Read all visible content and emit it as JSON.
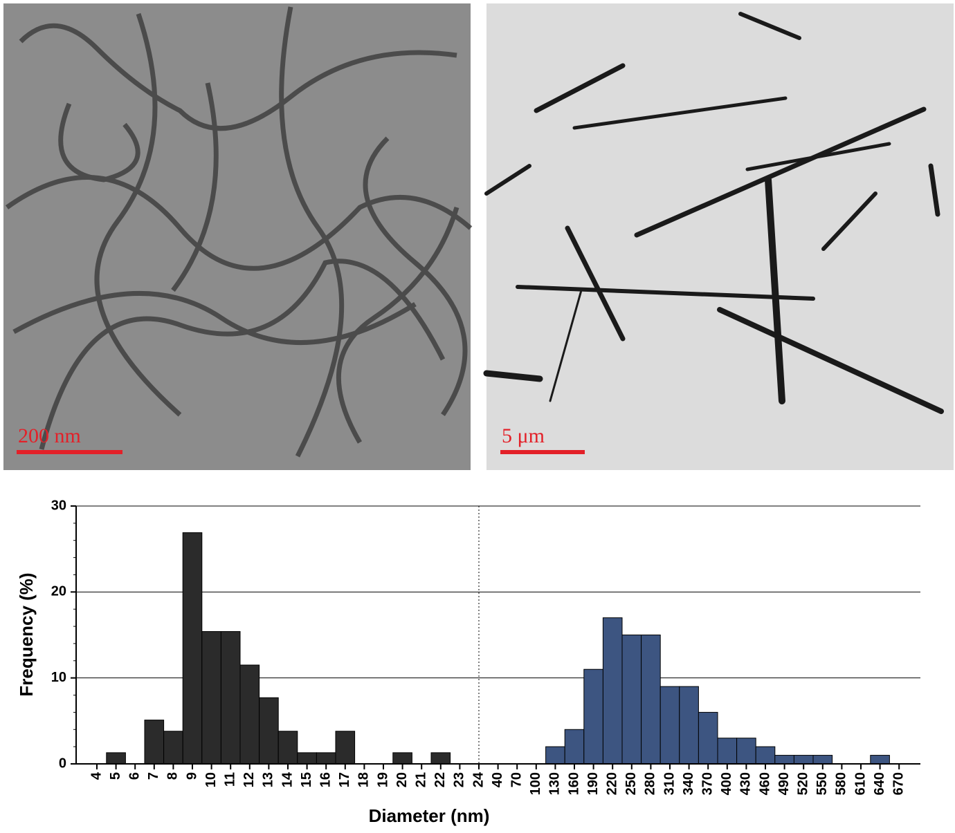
{
  "images": [
    {
      "scale_bar": "200 nm"
    },
    {
      "scale_bar": "5 μm"
    }
  ],
  "chart_data": {
    "type": "bar",
    "x_label": "Diameter (nm)",
    "y_label": "Frequency (%)",
    "categories": [
      "4",
      "5",
      "6",
      "7",
      "8",
      "9",
      "10",
      "11",
      "12",
      "13",
      "14",
      "15",
      "16",
      "17",
      "18",
      "19",
      "20",
      "21",
      "22",
      "23",
      "24",
      "40",
      "70",
      "100",
      "130",
      "160",
      "190",
      "220",
      "250",
      "280",
      "310",
      "340",
      "370",
      "400",
      "430",
      "460",
      "490",
      "520",
      "550",
      "580",
      "610",
      "640",
      "670"
    ],
    "series": [
      {
        "color": "#2b2b2b",
        "values": [
          0,
          1.3,
          0,
          5.1,
          3.8,
          26.9,
          15.4,
          15.4,
          11.5,
          7.7,
          3.8,
          1.3,
          1.3,
          3.8,
          0,
          0,
          1.3,
          0,
          1.3,
          0,
          0,
          null,
          null,
          null,
          null,
          null,
          null,
          null,
          null,
          null,
          null,
          null,
          null,
          null,
          null,
          null,
          null,
          null,
          null,
          null,
          null,
          null,
          null
        ]
      },
      {
        "color": "#3d5581",
        "values": [
          null,
          null,
          null,
          null,
          null,
          null,
          null,
          null,
          null,
          null,
          null,
          null,
          null,
          null,
          null,
          null,
          null,
          null,
          null,
          null,
          null,
          0,
          0,
          0,
          2,
          4,
          11,
          17,
          15,
          15,
          9,
          9,
          6,
          3,
          3,
          2,
          1,
          1,
          1,
          0,
          0,
          1,
          0
        ]
      }
    ],
    "ylim": [
      0,
      30
    ],
    "yticks": [
      0,
      10,
      20,
      30
    ],
    "grid": true
  }
}
